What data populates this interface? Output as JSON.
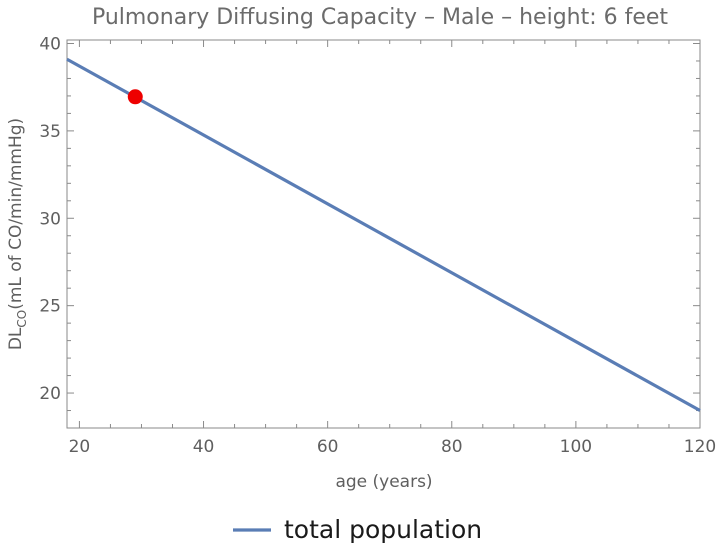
{
  "chart_data": {
    "type": "line",
    "title": "Pulmonary Diffusing Capacity – Male – height: 6 feet",
    "xlabel": "age (years)",
    "ylabel_main": "DL",
    "ylabel_sub": "CO",
    "ylabel_units": "(mL of CO/min/mmHg)",
    "xlim": [
      18,
      120
    ],
    "ylim": [
      18,
      40.2
    ],
    "xticks": [
      20,
      40,
      60,
      80,
      100,
      120
    ],
    "yticks": [
      20,
      25,
      30,
      35,
      40
    ],
    "series": [
      {
        "name": "total population",
        "color": "#5a7db5",
        "x": [
          18,
          120
        ],
        "y": [
          39.1,
          19.0
        ]
      }
    ],
    "highlight_point": {
      "x": 29,
      "y": 36.95,
      "color": "#ee0000"
    },
    "legend_position": "bottom-center",
    "grid": false
  }
}
